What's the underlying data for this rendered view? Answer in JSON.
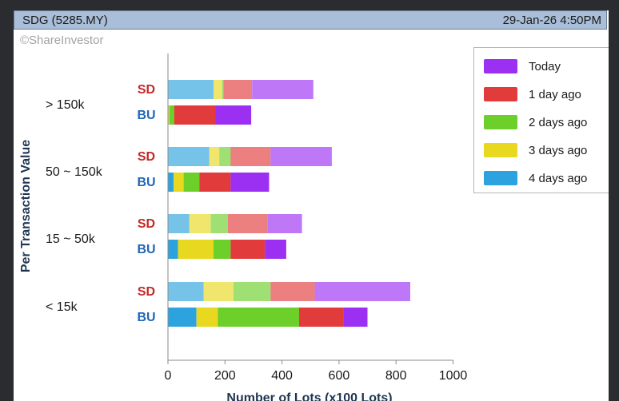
{
  "header": {
    "ticker": "SDG (5285.MY)",
    "datetime": "29-Jan-26 4:50PM"
  },
  "watermark": "©ShareInvestor",
  "colors": {
    "today": "#9b30f2",
    "1_day_ago": "#e23b3b",
    "2_days_ago": "#6ccf2a",
    "3_days_ago": "#e8d81f",
    "4_days_ago": "#2ca3df",
    "sd_label": "#c62828",
    "bu_label": "#1f66b8",
    "sd_alpha": 0.65
  },
  "chart_data": {
    "type": "bar",
    "orientation": "horizontal",
    "stacked": true,
    "title": "",
    "xlabel": "Number of Lots (x100 Lots)",
    "ylabel": "Per Transaction Value",
    "xlim": [
      0,
      1000
    ],
    "xticks": [
      0,
      200,
      400,
      600,
      800,
      1000
    ],
    "grid": false,
    "legend_position": "top-right",
    "categories": [
      "> 150k",
      "50 ~ 150k",
      "15 ~ 50k",
      "< 15k"
    ],
    "bar_labels": [
      "SD",
      "BU"
    ],
    "series": [
      {
        "name": "4 days ago",
        "key": "4_days_ago",
        "SD": [
          160,
          145,
          75,
          125
        ],
        "BU": [
          2,
          20,
          35,
          100
        ]
      },
      {
        "name": "3 days ago",
        "key": "3_days_ago",
        "SD": [
          30,
          35,
          75,
          105
        ],
        "BU": [
          3,
          35,
          125,
          75
        ]
      },
      {
        "name": "2 days ago",
        "key": "2_days_ago",
        "SD": [
          5,
          40,
          60,
          130
        ],
        "BU": [
          17,
          55,
          60,
          285
        ]
      },
      {
        "name": "1 day ago",
        "key": "1_day_ago",
        "SD": [
          100,
          140,
          140,
          155
        ],
        "BU": [
          145,
          110,
          120,
          155
        ]
      },
      {
        "name": "Today",
        "key": "today",
        "SD": [
          215,
          215,
          120,
          335
        ],
        "BU": [
          125,
          135,
          75,
          85
        ]
      }
    ]
  },
  "legend_order": [
    "Today",
    "1 day ago",
    "2 days ago",
    "3 days ago",
    "4 days ago"
  ]
}
